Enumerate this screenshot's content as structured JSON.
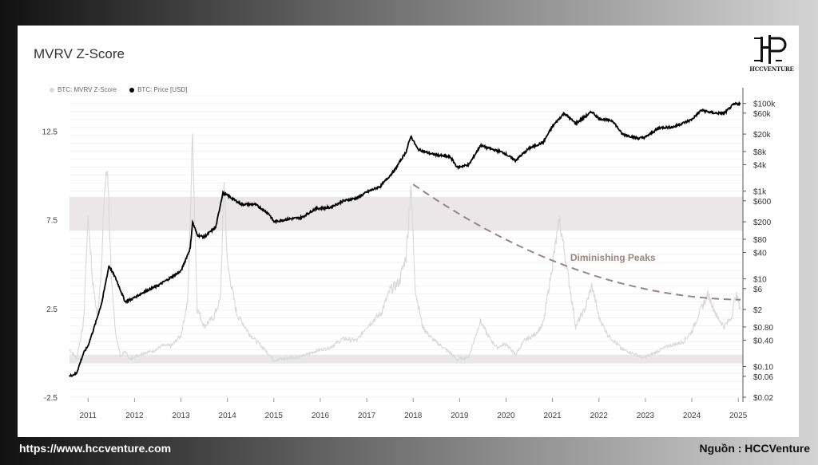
{
  "chart_data": {
    "type": "line",
    "title": "MVRV Z-Score",
    "legend": [
      {
        "name": "BTC: MVRV Z-Score",
        "color": "#d9d9d9"
      },
      {
        "name": "BTC: Price [USD]",
        "color": "#000000"
      }
    ],
    "legend_position": "top-left",
    "x_range": [
      2010.6,
      2025.1
    ],
    "x_ticks": [
      "2011",
      "2012",
      "2013",
      "2014",
      "2015",
      "2016",
      "2017",
      "2018",
      "2019",
      "2020",
      "2021",
      "2022",
      "2023",
      "2024",
      "2025"
    ],
    "y_left": {
      "range": [
        -2.5,
        14.5
      ],
      "ticks": [
        "12.5",
        "7.5",
        "2.5",
        "-2.5"
      ]
    },
    "y_right": {
      "scale": "log",
      "ticks": [
        "$100k",
        "$60k",
        "$20k",
        "$8k",
        "$4k",
        "$1k",
        "$600",
        "$200",
        "$80",
        "$40",
        "$10",
        "$6",
        "$2",
        "$0.80",
        "$0.40",
        "$0.10",
        "$0.06",
        "$0.02"
      ]
    },
    "bands": [
      {
        "from": 6.9,
        "to": 8.8,
        "color": "#ebe7e8"
      },
      {
        "from": -0.6,
        "to": -0.1,
        "color": "#ebe7e8"
      }
    ],
    "series": [
      {
        "name": "BTC: MVRV Z-Score",
        "color": "#dadada",
        "points": [
          [
            2010.6,
            0.2
          ],
          [
            2010.75,
            -0.3
          ],
          [
            2010.9,
            1.6
          ],
          [
            2011.0,
            7.8
          ],
          [
            2011.1,
            4.0
          ],
          [
            2011.2,
            2.0
          ],
          [
            2011.3,
            5.3
          ],
          [
            2011.35,
            9.0
          ],
          [
            2011.42,
            10.5
          ],
          [
            2011.5,
            4.0
          ],
          [
            2011.6,
            1.0
          ],
          [
            2011.7,
            -0.2
          ],
          [
            2011.8,
            0.1
          ],
          [
            2011.9,
            -0.4
          ],
          [
            2012.0,
            -0.2
          ],
          [
            2012.2,
            0.0
          ],
          [
            2012.4,
            0.1
          ],
          [
            2012.6,
            0.4
          ],
          [
            2012.8,
            0.4
          ],
          [
            2013.0,
            1.0
          ],
          [
            2013.15,
            3.0
          ],
          [
            2013.25,
            12.3
          ],
          [
            2013.35,
            2.5
          ],
          [
            2013.5,
            1.5
          ],
          [
            2013.7,
            2.0
          ],
          [
            2013.85,
            3.0
          ],
          [
            2013.93,
            9.8
          ],
          [
            2014.0,
            5.0
          ],
          [
            2014.2,
            2.2
          ],
          [
            2014.5,
            1.0
          ],
          [
            2014.8,
            0.2
          ],
          [
            2015.0,
            -0.4
          ],
          [
            2015.3,
            -0.3
          ],
          [
            2015.6,
            -0.2
          ],
          [
            2015.9,
            0.1
          ],
          [
            2016.2,
            0.3
          ],
          [
            2016.5,
            0.8
          ],
          [
            2016.8,
            0.7
          ],
          [
            2017.0,
            1.5
          ],
          [
            2017.3,
            2.2
          ],
          [
            2017.5,
            3.5
          ],
          [
            2017.7,
            4.0
          ],
          [
            2017.85,
            5.5
          ],
          [
            2017.95,
            9.5
          ],
          [
            2018.05,
            3.5
          ],
          [
            2018.2,
            1.5
          ],
          [
            2018.4,
            0.8
          ],
          [
            2018.6,
            0.4
          ],
          [
            2018.8,
            0.0
          ],
          [
            2018.95,
            -0.4
          ],
          [
            2019.2,
            -0.2
          ],
          [
            2019.45,
            1.8
          ],
          [
            2019.6,
            1.0
          ],
          [
            2019.8,
            0.3
          ],
          [
            2020.0,
            0.5
          ],
          [
            2020.2,
            -0.1
          ],
          [
            2020.4,
            0.7
          ],
          [
            2020.6,
            1.0
          ],
          [
            2020.8,
            1.6
          ],
          [
            2021.0,
            5.0
          ],
          [
            2021.15,
            7.5
          ],
          [
            2021.3,
            5.0
          ],
          [
            2021.5,
            1.5
          ],
          [
            2021.7,
            2.5
          ],
          [
            2021.85,
            3.8
          ],
          [
            2022.0,
            2.0
          ],
          [
            2022.2,
            1.0
          ],
          [
            2022.5,
            0.2
          ],
          [
            2022.8,
            -0.1
          ],
          [
            2022.95,
            -0.3
          ],
          [
            2023.2,
            0.0
          ],
          [
            2023.5,
            0.4
          ],
          [
            2023.8,
            0.6
          ],
          [
            2024.0,
            1.2
          ],
          [
            2024.2,
            2.5
          ],
          [
            2024.35,
            3.3
          ],
          [
            2024.55,
            2.0
          ],
          [
            2024.7,
            1.5
          ],
          [
            2024.85,
            2.0
          ],
          [
            2024.95,
            3.3
          ],
          [
            2025.05,
            2.5
          ]
        ]
      },
      {
        "name": "BTC: Price [USD]",
        "color": "#000000",
        "points": [
          [
            2010.6,
            0.06
          ],
          [
            2010.75,
            0.07
          ],
          [
            2010.9,
            0.2
          ],
          [
            2011.0,
            0.3
          ],
          [
            2011.15,
            0.9
          ],
          [
            2011.3,
            3.0
          ],
          [
            2011.45,
            20
          ],
          [
            2011.6,
            10
          ],
          [
            2011.8,
            3.0
          ],
          [
            2011.95,
            3.5
          ],
          [
            2012.2,
            5.0
          ],
          [
            2012.5,
            7.0
          ],
          [
            2012.8,
            11
          ],
          [
            2013.0,
            15
          ],
          [
            2013.2,
            50
          ],
          [
            2013.25,
            200
          ],
          [
            2013.35,
            100
          ],
          [
            2013.5,
            90
          ],
          [
            2013.75,
            150
          ],
          [
            2013.9,
            900
          ],
          [
            2014.0,
            800
          ],
          [
            2014.3,
            500
          ],
          [
            2014.6,
            500
          ],
          [
            2014.9,
            300
          ],
          [
            2015.0,
            200
          ],
          [
            2015.3,
            230
          ],
          [
            2015.6,
            250
          ],
          [
            2015.9,
            400
          ],
          [
            2016.2,
            420
          ],
          [
            2016.5,
            600
          ],
          [
            2016.8,
            700
          ],
          [
            2017.0,
            950
          ],
          [
            2017.3,
            1300
          ],
          [
            2017.6,
            3000
          ],
          [
            2017.85,
            8000
          ],
          [
            2017.95,
            18000
          ],
          [
            2018.1,
            9000
          ],
          [
            2018.4,
            7000
          ],
          [
            2018.8,
            6000
          ],
          [
            2018.95,
            3500
          ],
          [
            2019.2,
            4000
          ],
          [
            2019.45,
            11000
          ],
          [
            2019.7,
            9000
          ],
          [
            2019.95,
            7500
          ],
          [
            2020.2,
            5000
          ],
          [
            2020.5,
            9500
          ],
          [
            2020.8,
            13000
          ],
          [
            2021.0,
            30000
          ],
          [
            2021.25,
            60000
          ],
          [
            2021.5,
            35000
          ],
          [
            2021.85,
            65000
          ],
          [
            2022.0,
            45000
          ],
          [
            2022.3,
            40000
          ],
          [
            2022.5,
            20000
          ],
          [
            2022.85,
            16000
          ],
          [
            2023.0,
            17000
          ],
          [
            2023.3,
            28000
          ],
          [
            2023.6,
            29000
          ],
          [
            2023.85,
            37000
          ],
          [
            2024.0,
            43000
          ],
          [
            2024.2,
            70000
          ],
          [
            2024.5,
            60000
          ],
          [
            2024.7,
            60000
          ],
          [
            2024.9,
            95000
          ],
          [
            2025.05,
            100000
          ]
        ]
      }
    ],
    "annotation": {
      "text": "Diminishing Peaks",
      "trend_line": [
        [
          2018.0,
          9.5
        ],
        [
          2021.2,
          5.0
        ],
        [
          2025.05,
          3.0
        ]
      ],
      "color": "#9a8582"
    }
  },
  "logo": {
    "text": "HCCVENTURE"
  },
  "footer": {
    "website": "https://www.hccventure.com",
    "source": "Nguồn : HCCVenture"
  }
}
